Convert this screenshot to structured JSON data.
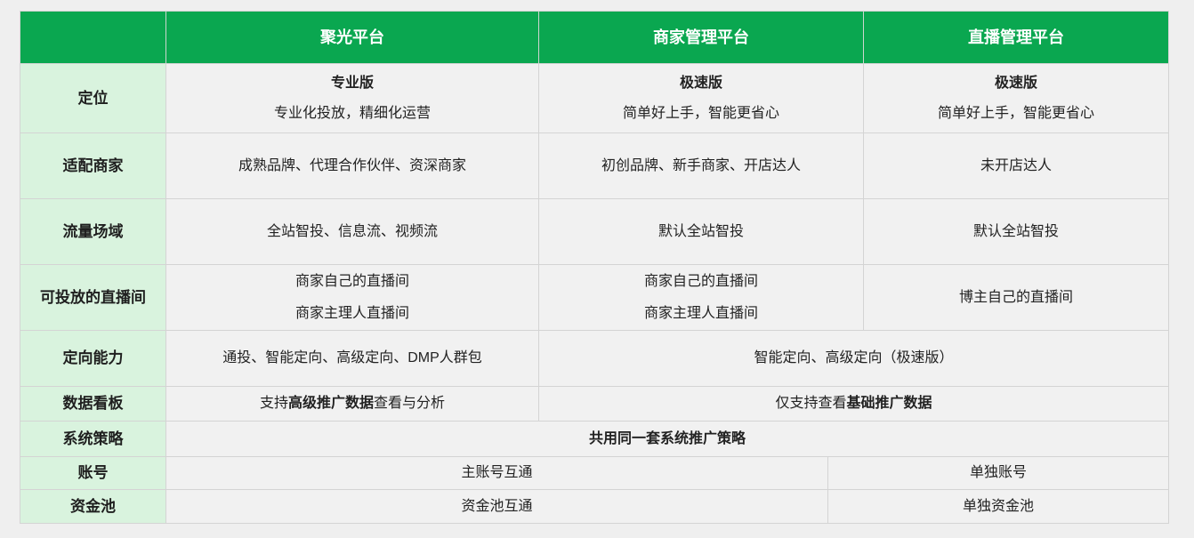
{
  "colors": {
    "header_green": "#0aa750",
    "label_green": "#d9f3de",
    "cell_gray": "#f1f1f1",
    "page_background": "#efefef",
    "border": "#d4d4d4",
    "header_text": "#ffffff",
    "body_text": "#222222"
  },
  "header": {
    "labels_col": "",
    "juguang": "聚光平台",
    "merchant": "商家管理平台",
    "live": "直播管理平台"
  },
  "rows": {
    "positioning": {
      "label": "定位",
      "juguang": {
        "title": "专业版",
        "desc": "专业化投放，精细化运营"
      },
      "merchant": {
        "title": "极速版",
        "desc": "简单好上手，智能更省心"
      },
      "live": {
        "title": "极速版",
        "desc": "简单好上手，智能更省心"
      }
    },
    "suited_merchants": {
      "label": "适配商家",
      "juguang": "成熟品牌、代理合作伙伴、资深商家",
      "merchant": "初创品牌、新手商家、开店达人",
      "live": "未开店达人"
    },
    "traffic_fields": {
      "label": "流量场域",
      "juguang": "全站智投、信息流、视频流",
      "merchant": "默认全站智投",
      "live": "默认全站智投"
    },
    "live_rooms": {
      "label": "可投放的直播间",
      "juguang": {
        "line1": "商家自己的直播间",
        "line2": "商家主理人直播间"
      },
      "merchant": {
        "line1": "商家自己的直播间",
        "line2": "商家主理人直播间"
      },
      "live": "博主自己的直播间"
    },
    "targeting": {
      "label": "定向能力",
      "juguang": "通投、智能定向、高级定向、DMP人群包",
      "merged": "智能定向、高级定向（极速版）"
    },
    "dashboard": {
      "label": "数据看板",
      "juguang": {
        "prefix": "支持",
        "bold": "高级推广数据",
        "suffix": "查看与分析"
      },
      "merged": {
        "prefix": "仅支持查看",
        "bold": "基础推广数据"
      }
    },
    "system_strategy": {
      "label": "系统策略",
      "merged": "共用同一套系统推广策略"
    },
    "account": {
      "label": "账号",
      "merged": "主账号互通",
      "live": "单独账号"
    },
    "funds_pool": {
      "label": "资金池",
      "merged": "资金池互通",
      "live": "单独资金池"
    }
  }
}
